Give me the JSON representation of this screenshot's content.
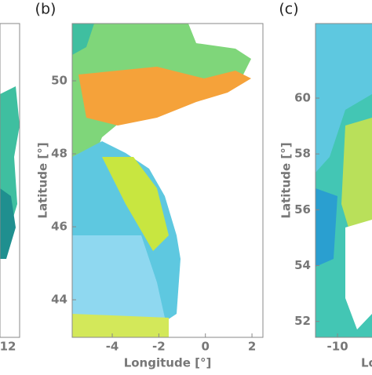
{
  "panels": [
    {
      "xticks": [
        {
          "value": 12,
          "label": "12"
        }
      ]
    },
    {
      "label": "(b)",
      "xlabel": "Longitude [°]",
      "ylabel": "Latitude [°]",
      "xlim": [
        -5.72,
        2.47
      ],
      "ylim": [
        42.97,
        51.57
      ],
      "xticks": [
        {
          "value": -4,
          "label": "-4"
        },
        {
          "value": -2,
          "label": "-2"
        },
        {
          "value": 0,
          "label": "0"
        },
        {
          "value": 2,
          "label": "2"
        }
      ],
      "yticks": [
        {
          "value": 44,
          "label": "44"
        },
        {
          "value": 46,
          "label": "46"
        },
        {
          "value": 48,
          "label": "48"
        },
        {
          "value": 50,
          "label": "50"
        }
      ]
    },
    {
      "label": "(c)",
      "xlabel": "Longitude [°]",
      "ylabel": "Latitude [°]",
      "xlim": [
        -11.6,
        -7.5
      ],
      "ylim": [
        51.43,
        62.67
      ],
      "xticks": [
        {
          "value": -10,
          "label": "-10"
        }
      ],
      "yticks": [
        {
          "value": 52,
          "label": "52"
        },
        {
          "value": 54,
          "label": "54"
        },
        {
          "value": 56,
          "label": "56"
        },
        {
          "value": 58,
          "label": "58"
        },
        {
          "value": 60,
          "label": "60"
        }
      ]
    }
  ]
}
